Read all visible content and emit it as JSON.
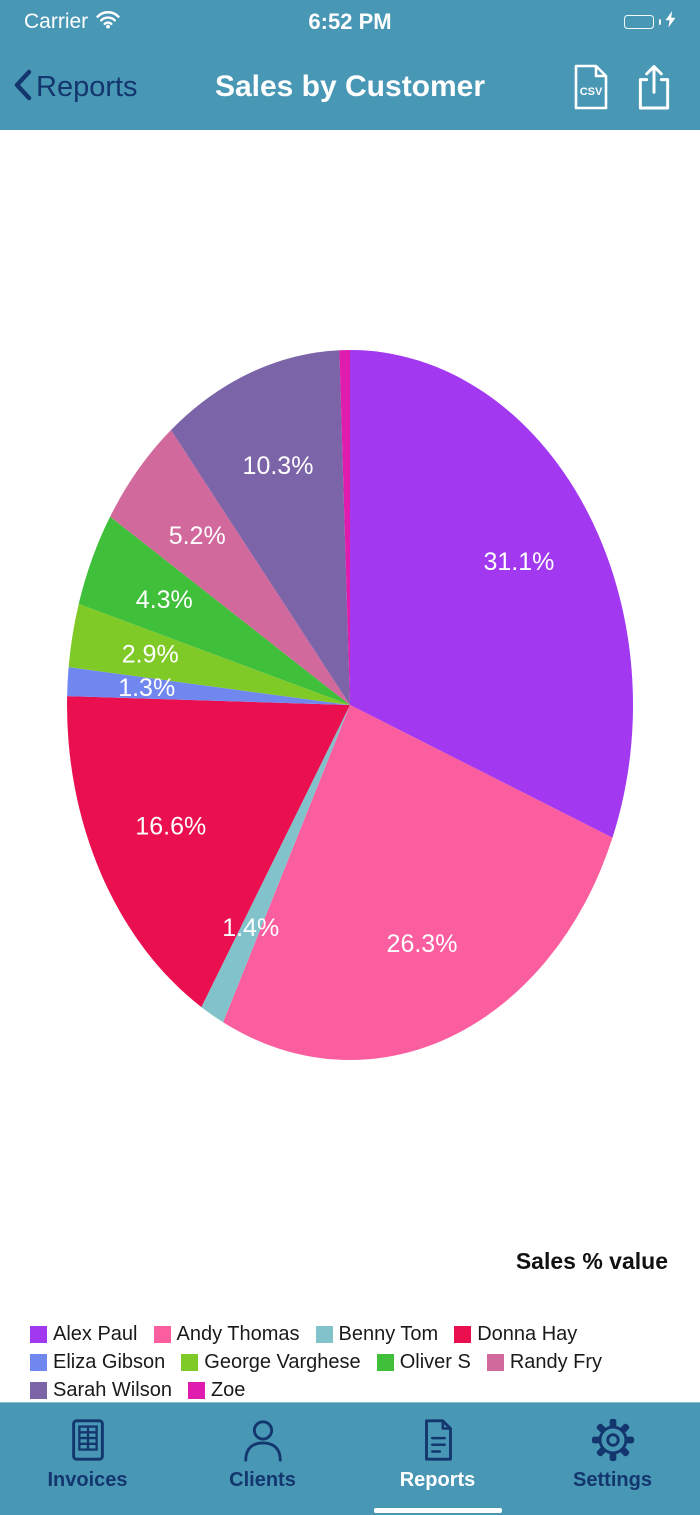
{
  "status_bar": {
    "carrier": "Carrier",
    "time": "6:52 PM"
  },
  "nav": {
    "back_label": "Reports",
    "title": "Sales by Customer",
    "csv_badge": "CSV"
  },
  "chart_data": {
    "type": "pie",
    "series_label": "Sales % value",
    "start_angle_deg": 0,
    "direction": "clockwise",
    "legend_position": "bottom",
    "slices": [
      {
        "label": "Alex Paul",
        "value": 31.1,
        "display": "31.1%",
        "color": "#a238f0"
      },
      {
        "label": "Andy Thomas",
        "value": 26.3,
        "display": "26.3%",
        "color": "#fb5e9f"
      },
      {
        "label": "Benny Tom",
        "value": 1.4,
        "display": "1.4%",
        "color": "#82c3cb"
      },
      {
        "label": "Donna Hay",
        "value": 16.6,
        "display": "16.6%",
        "color": "#ea1050"
      },
      {
        "label": "Eliza Gibson",
        "value": 1.3,
        "display": "1.3%",
        "color": "#7187f0"
      },
      {
        "label": "George Varghese",
        "value": 2.9,
        "display": "2.9%",
        "color": "#80ca28"
      },
      {
        "label": "Oliver S",
        "value": 4.3,
        "display": "4.3%",
        "color": "#3fbf3a"
      },
      {
        "label": "Randy Fry",
        "value": 5.2,
        "display": "5.2%",
        "color": "#d2699c"
      },
      {
        "label": "Sarah Wilson",
        "value": 10.3,
        "display": "10.3%",
        "color": "#7b64a8"
      },
      {
        "label": "Zoe",
        "value": 0.6,
        "display": "",
        "color": "#df1cae"
      }
    ]
  },
  "tab_bar": {
    "items": [
      {
        "label": "Invoices",
        "icon": "invoices-table-icon",
        "selected": false
      },
      {
        "label": "Clients",
        "icon": "person-icon",
        "selected": false
      },
      {
        "label": "Reports",
        "icon": "document-icon",
        "selected": true
      },
      {
        "label": "Settings",
        "icon": "gear-icon",
        "selected": false
      }
    ]
  },
  "colors": {
    "header_teal": "#4897b5",
    "navy": "#14366e",
    "battery_green": "#42d164"
  }
}
